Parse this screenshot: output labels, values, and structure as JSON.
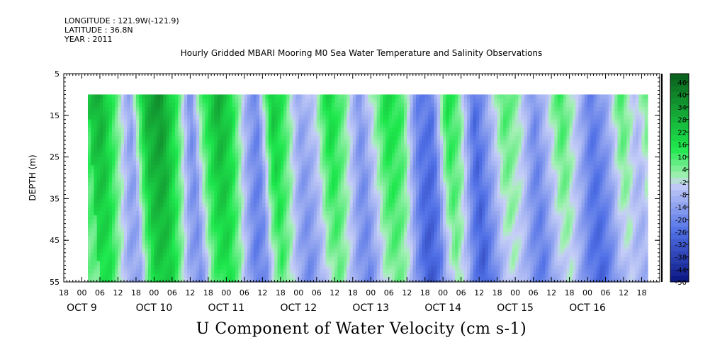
{
  "header": {
    "longitude": "LONGITUDE : 121.9W(-121.9)",
    "latitude": "LATITUDE : 36.8N",
    "year": "YEAR : 2011"
  },
  "chart_data": {
    "type": "heatmap",
    "title": "Hourly Gridded MBARI Mooring M0 Sea Water Temperature and Salinity Observations",
    "bottom_title": "U Component of Water Velocity (cm s-1)",
    "ylabel": "DEPTH (m)",
    "xlabel": "",
    "y_axis": {
      "ticks": [
        5,
        15,
        25,
        35,
        45,
        55
      ],
      "ylim": [
        5,
        55
      ],
      "inverted": true
    },
    "x_axis": {
      "hour_ticks": [
        "18",
        "00",
        "06",
        "12",
        "18",
        "00",
        "06",
        "12",
        "18",
        "00",
        "06",
        "12",
        "18",
        "00",
        "06",
        "12",
        "18",
        "00",
        "06",
        "12",
        "18",
        "00",
        "06",
        "12",
        "18",
        "00",
        "06",
        "12",
        "18",
        "00",
        "06",
        "12",
        "18"
      ],
      "day_labels": [
        "OCT  9",
        "OCT 10",
        "OCT 11",
        "OCT 12",
        "OCT 13",
        "OCT 14",
        "OCT 15",
        "OCT 16"
      ],
      "range_hours": [
        0,
        198
      ]
    },
    "data_extent": {
      "depth_top": 10,
      "depth_bottom": 55,
      "hour_start": 8,
      "hour_end": 194
    },
    "colorbar": {
      "labels": [
        "46",
        "40",
        "34",
        "28",
        "22",
        "16",
        "10",
        "4",
        "-2",
        "-8",
        "-14",
        "-20",
        "-26",
        "-32",
        "-38",
        "-44",
        "-50"
      ],
      "min": -50,
      "max": 50,
      "colors": {
        "negative_dark": "#0a1480",
        "negative_mid": "#4f6fe6",
        "negative_light": "#c6cef7",
        "positive_light": "#a8f0b8",
        "positive_mid": "#1ee84d",
        "positive_dark": "#0a5e1c"
      }
    },
    "velocity_pattern": {
      "description_free_note": "",
      "columns_per_hour": 1,
      "bands": [
        {
          "h": 8,
          "v": 22
        },
        {
          "h": 12,
          "v": 30
        },
        {
          "h": 18,
          "v": 4
        },
        {
          "h": 22,
          "v": -14
        },
        {
          "h": 27,
          "v": 28
        },
        {
          "h": 32,
          "v": 36
        },
        {
          "h": 37,
          "v": 14
        },
        {
          "h": 42,
          "v": -18
        },
        {
          "h": 46,
          "v": 10
        },
        {
          "h": 51,
          "v": 30
        },
        {
          "h": 55,
          "v": 20
        },
        {
          "h": 60,
          "v": -8
        },
        {
          "h": 64,
          "v": -20
        },
        {
          "h": 69,
          "v": 24
        },
        {
          "h": 73,
          "v": 12
        },
        {
          "h": 78,
          "v": -12
        },
        {
          "h": 83,
          "v": -4
        },
        {
          "h": 88,
          "v": 20
        },
        {
          "h": 93,
          "v": 6
        },
        {
          "h": 98,
          "v": -16
        },
        {
          "h": 103,
          "v": 2
        },
        {
          "h": 107,
          "v": 18
        },
        {
          "h": 112,
          "v": 12
        },
        {
          "h": 117,
          "v": -20
        },
        {
          "h": 122,
          "v": -24
        },
        {
          "h": 127,
          "v": 16
        },
        {
          "h": 131,
          "v": 8
        },
        {
          "h": 136,
          "v": -26
        },
        {
          "h": 141,
          "v": -10
        },
        {
          "h": 146,
          "v": 10
        },
        {
          "h": 151,
          "v": 2
        },
        {
          "h": 156,
          "v": -18
        },
        {
          "h": 161,
          "v": -2
        },
        {
          "h": 165,
          "v": 12
        },
        {
          "h": 170,
          "v": -4
        },
        {
          "h": 175,
          "v": -22
        },
        {
          "h": 180,
          "v": -12
        },
        {
          "h": 185,
          "v": 10
        },
        {
          "h": 190,
          "v": -6
        },
        {
          "h": 194,
          "v": 8
        }
      ]
    }
  }
}
